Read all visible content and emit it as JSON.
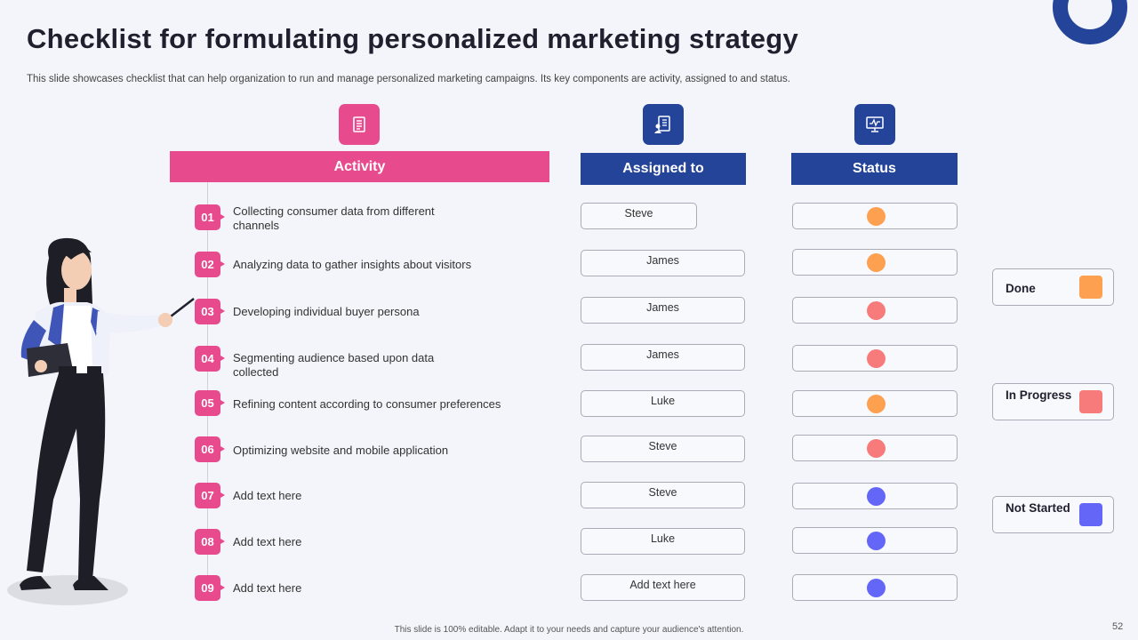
{
  "title": "Checklist for formulating personalized marketing strategy",
  "subtitle": "This slide showcases checklist that can help organization to run and manage personalized marketing campaigns. Its key components are activity,  assigned to and status.",
  "headers": {
    "activity": "Activity",
    "assigned": "Assigned to",
    "status": "Status"
  },
  "icons": {
    "activity": "document-icon",
    "assigned": "clipboard-person-icon",
    "status": "monitor-chart-icon"
  },
  "colors": {
    "pink": "#e84a8e",
    "navy": "#24449a",
    "done": "#fda050",
    "in_progress": "#f77b7b",
    "not_started": "#6366f6"
  },
  "rows": [
    {
      "num": "01",
      "activity": "Collecting consumer data from different channels",
      "assigned": "Steve",
      "status": "done"
    },
    {
      "num": "02",
      "activity": "Analyzing data to gather insights about visitors",
      "assigned": "James",
      "status": "done"
    },
    {
      "num": "03",
      "activity": "Developing  individual  buyer persona",
      "assigned": "James",
      "status": "in_progress"
    },
    {
      "num": "04",
      "activity": "Segmenting audience  based upon data collected",
      "assigned": "James",
      "status": "in_progress"
    },
    {
      "num": "05",
      "activity": "Refining  content according to consumer preferences",
      "assigned": "Luke",
      "status": "done"
    },
    {
      "num": "06",
      "activity": "Optimizing website and mobile application",
      "assigned": "Steve",
      "status": "in_progress"
    },
    {
      "num": "07",
      "activity": "Add text here",
      "assigned": "Steve",
      "status": "not_started"
    },
    {
      "num": "08",
      "activity": "Add text here",
      "assigned": "Luke",
      "status": "not_started"
    },
    {
      "num": "09",
      "activity": "Add text here",
      "assigned": "Add text here",
      "status": "not_started"
    }
  ],
  "legend": {
    "done": "Done",
    "in_progress": "In Progress",
    "not_started": "Not Started"
  },
  "footer": "This slide is 100% editable.  Adapt it to your needs and capture your audience's attention.",
  "page_number": "52"
}
